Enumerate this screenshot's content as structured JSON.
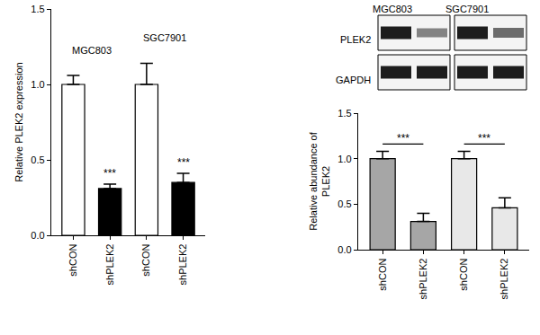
{
  "chart_data": [
    {
      "type": "bar",
      "categories": [
        "shCON",
        "shPLEK2",
        "shCON",
        "shPLEK2"
      ],
      "values": [
        1.0,
        0.31,
        1.0,
        0.35
      ],
      "errors": [
        0.06,
        0.03,
        0.14,
        0.06
      ],
      "colors": [
        "#ffffff",
        "#000000",
        "#ffffff",
        "#000000"
      ],
      "y_label": "Relative PLEK2 expression",
      "ylim": [
        0,
        1.5
      ],
      "yticks": [
        {
          "value": 0,
          "label": "0.0"
        },
        0.5,
        {
          "value": 1,
          "label": "1.0"
        },
        1.5
      ],
      "grid": false,
      "annotations": [
        {
          "text": "***",
          "category_index": 1
        },
        {
          "text": "***",
          "category_index": 3
        }
      ],
      "groups": [
        {
          "label": "MGC803",
          "from": 0,
          "to": 1
        },
        {
          "label": "SGC7901",
          "from": 2,
          "to": 3
        }
      ]
    },
    {
      "type": "bar",
      "categories": [
        "shCON",
        "shPLEK2",
        "shCON",
        "shPLEK2"
      ],
      "values": [
        1.0,
        0.31,
        1.0,
        0.46
      ],
      "errors": [
        0.08,
        0.09,
        0.08,
        0.11
      ],
      "colors": [
        "#a6a6a6",
        "#a6a6a6",
        "#e8e8e8",
        "#e8e8e8"
      ],
      "y_label": [
        "Relative abundance of",
        "PLEK2"
      ],
      "ylim": [
        0,
        1.5
      ],
      "yticks": [
        {
          "value": 0,
          "label": "0.0"
        },
        0.5,
        {
          "value": 1,
          "label": "1.0"
        },
        1.5
      ],
      "grid": false,
      "comparisons": [
        {
          "from": 0,
          "to": 1,
          "text": "***"
        },
        {
          "from": 2,
          "to": 3,
          "text": "***"
        }
      ]
    }
  ],
  "blot": {
    "cell_lines": [
      "MGC803",
      "SGC7901"
    ],
    "proteins": [
      "PLEK2",
      "GAPDH"
    ]
  }
}
